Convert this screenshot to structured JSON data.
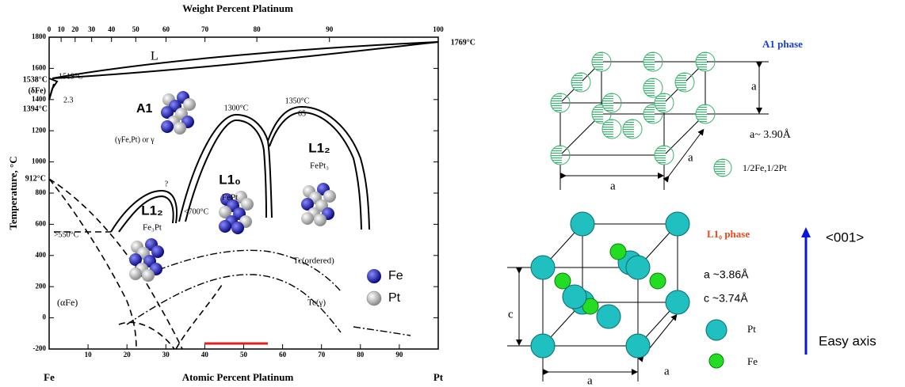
{
  "phase_diagram": {
    "top_axis": {
      "title": "Weight Percent Platinum",
      "ticks": [
        0,
        10,
        20,
        30,
        40,
        50,
        60,
        70,
        80,
        90,
        100
      ]
    },
    "y_axis": {
      "title": "Temperature, °C",
      "ticks": [
        1800,
        1600,
        1400,
        1200,
        1000,
        800,
        600,
        400,
        200,
        0,
        -200
      ]
    },
    "bottom_axis": {
      "title": "Atomic Percent Platinum",
      "ticks": [
        10,
        20,
        30,
        40,
        50,
        60,
        70,
        80,
        90
      ],
      "left_end": "Fe",
      "right_end": "Pt"
    },
    "labels": {
      "t1769": "1769°C",
      "t1538": "1538°C",
      "delta_fe": "(δFe)",
      "t1519": "1519°C",
      "v23": "2.3",
      "t1394": "1394°C",
      "t912": "912°C",
      "liquid": "L",
      "a1": "A1",
      "gamma": "(γFe,Pt) or γ",
      "t1300": "1300°C",
      "t1350": "1350°C",
      "v65": "65",
      "l10": "L1₀",
      "fept": "FePt",
      "l12_right": "L1₂",
      "fept3": "FePt₃",
      "l12_left": "L1₂",
      "fe3pt": "Fe₃Pt",
      "question": "?",
      "lt700": "<700°C",
      "gt550": ">550°C",
      "tc_ordered": "Tc(ordered)",
      "tc_gamma": "Tc(γ)",
      "alpha_fe": "(αFe)"
    },
    "legend": [
      {
        "label": "Fe"
      },
      {
        "label": "Pt"
      }
    ]
  },
  "a1_cell": {
    "title": "A1 phase",
    "edge_labels": [
      "a",
      "a",
      "a"
    ],
    "lattice": "a~ 3.90Å",
    "atom_label": "1/2Fe,1/2Pt"
  },
  "l10_cell": {
    "title": "L1₀ phase",
    "edge_labels": [
      "c",
      "a",
      "a"
    ],
    "lattice_a": "a ~3.86Å",
    "lattice_c": "c ~3.74Å",
    "atom_labels": [
      "Pt",
      "Fe"
    ]
  },
  "easy_axis": {
    "direction": "<001>",
    "label": "Easy axis"
  }
}
